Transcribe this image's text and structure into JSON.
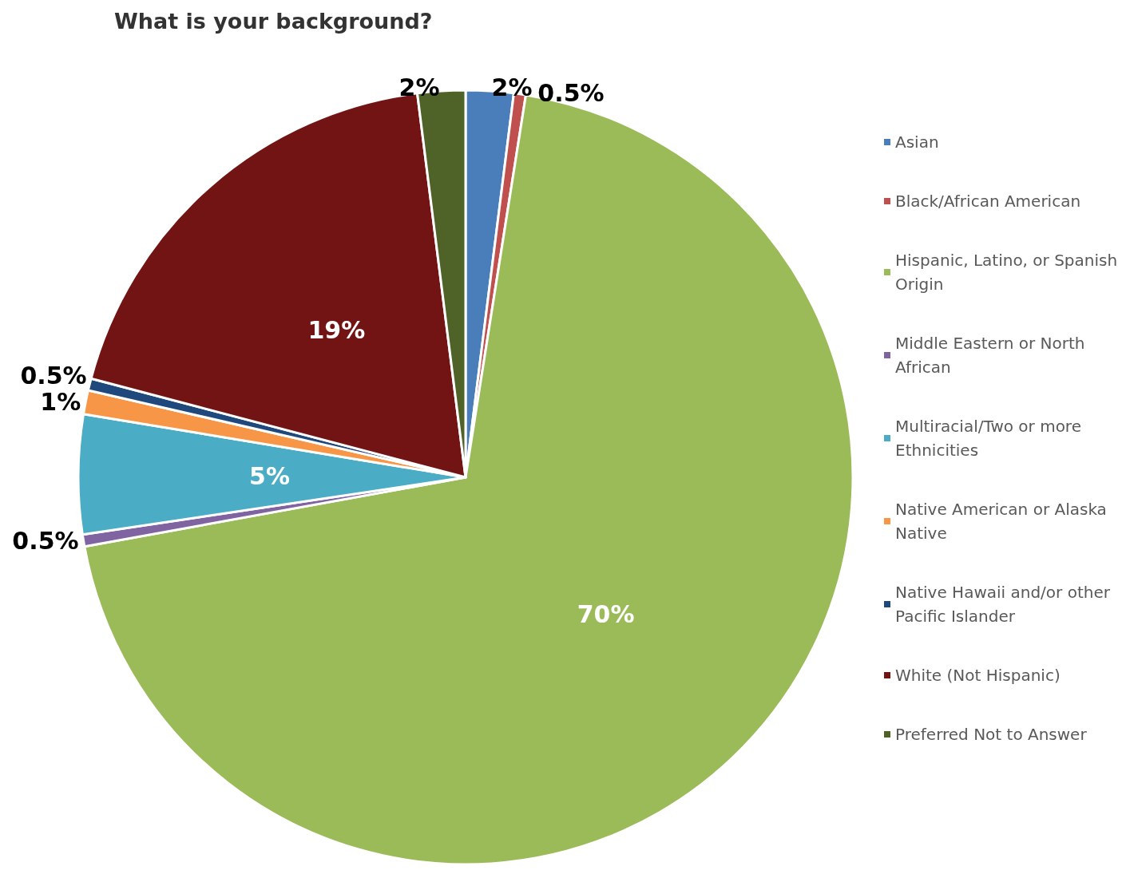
{
  "chart_data": {
    "type": "pie",
    "title": "What is your background?",
    "categories": [
      "Asian",
      "Black/African American",
      "Hispanic, Latino, or Spanish Origin",
      "Middle Eastern or North African",
      "Multiracial/Two or more Ethnicities",
      "Native American or Alaska Native",
      "Native Hawaii and/or other Pacific Islander",
      "White (Not Hispanic)",
      "Preferred Not to Answer"
    ],
    "values": [
      2,
      0.5,
      70,
      0.5,
      5,
      1,
      0.5,
      19,
      2
    ],
    "value_labels": [
      "2%",
      "0.5%",
      "70%",
      "0.5%",
      "5%",
      "1%",
      "0.5%",
      "19%",
      "2%"
    ],
    "colors": [
      "#4a7ebb",
      "#c0504d",
      "#9bbb59",
      "#8064a2",
      "#4bacc6",
      "#f79646",
      "#1f497d",
      "#731414",
      "#4f6228"
    ],
    "legend": "right"
  }
}
